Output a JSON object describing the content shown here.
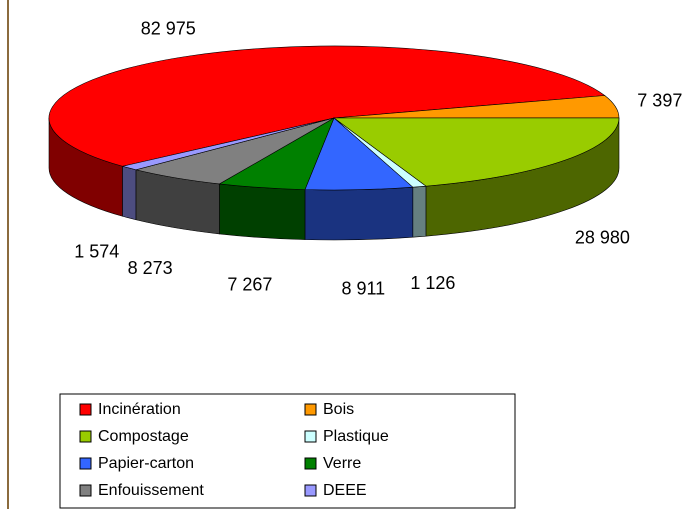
{
  "chart_data": {
    "type": "pie3d",
    "categories": [
      "Incinération",
      "Bois",
      "Compostage",
      "Plastique",
      "Papier-carton",
      "Verre",
      "Enfouissement",
      "DEEE"
    ],
    "values": [
      82975,
      7397,
      28980,
      1126,
      8911,
      7267,
      8273,
      1574
    ],
    "value_labels": [
      "82 975",
      "7 397",
      "28 980",
      "1 126",
      "8 911",
      "7 267",
      "8 273",
      "1 574"
    ],
    "colors": [
      "#ff0000",
      "#ff9900",
      "#99cc00",
      "#ccffff",
      "#3366ff",
      "#008000",
      "#808080",
      "#9999ff"
    ],
    "legend": "bottom"
  }
}
